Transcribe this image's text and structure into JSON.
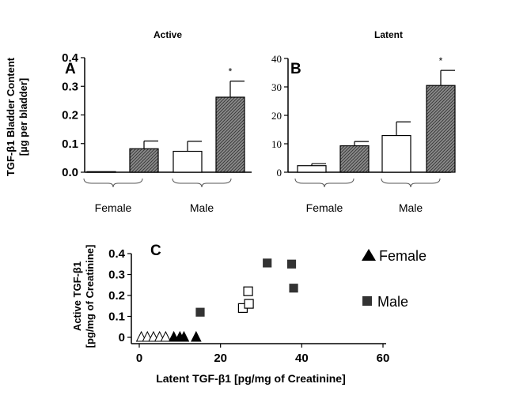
{
  "panel_A": {
    "panel_label": "A",
    "title": "Active",
    "ylabel_line1": "TGF-β1 Bladder Content",
    "ylabel_line2": "[µg per bladder]",
    "group_labels": [
      "Female",
      "Male"
    ]
  },
  "panel_B": {
    "panel_label": "B",
    "title": "Latent",
    "group_labels": [
      "Female",
      "Male"
    ]
  },
  "panel_C": {
    "panel_label": "C",
    "ylabel_line1": "Active TGF-β1",
    "ylabel_line2": "[pg/mg of Creatinine]",
    "xlabel": "Latent TGF-β1 [pg/mg of Creatinine]",
    "legend": [
      "Female",
      "Male"
    ]
  },
  "colors": {
    "hatched_bar": "#909090",
    "open_bar": "#ffffff",
    "male_marker": "#333333",
    "axis": "#000000"
  },
  "chart_data": [
    {
      "type": "bar",
      "panel": "A",
      "title": "Active",
      "ylabel": "TGF-β1 Bladder Content [µg per bladder]",
      "ylim": [
        0,
        0.4
      ],
      "yticks": [
        0.0,
        0.1,
        0.2,
        0.3,
        0.4
      ],
      "ytick_labels": [
        "0.0",
        "0.1",
        "0.2",
        "0.3",
        "0.4"
      ],
      "groups": [
        "Female",
        "Female",
        "Male",
        "Male"
      ],
      "fill": [
        "open",
        "hatched",
        "open",
        "hatched"
      ],
      "values": [
        0.002,
        0.082,
        0.073,
        0.262
      ],
      "errors": [
        0.0,
        0.027,
        0.035,
        0.056
      ],
      "significance": [
        "",
        "",
        "",
        "*"
      ]
    },
    {
      "type": "bar",
      "panel": "B",
      "title": "Latent",
      "ylim": [
        0,
        40
      ],
      "yticks": [
        0,
        10,
        20,
        30,
        40
      ],
      "ytick_labels": [
        "0",
        "10",
        "20",
        "30",
        "40"
      ],
      "groups": [
        "Female",
        "Female",
        "Male",
        "Male"
      ],
      "fill": [
        "open",
        "hatched",
        "open",
        "hatched"
      ],
      "values": [
        2.3,
        9.3,
        12.9,
        30.5
      ],
      "errors": [
        0.7,
        1.5,
        4.8,
        5.3
      ],
      "significance": [
        "",
        "",
        "",
        "*"
      ]
    },
    {
      "type": "scatter",
      "panel": "C",
      "xlabel": "Latent TGF-β1 [pg/mg of Creatinine]",
      "ylabel": "Active TGF-β1 [pg/mg of Creatinine]",
      "xlim": [
        0,
        60
      ],
      "ylim": [
        0,
        0.4
      ],
      "xticks": [
        0,
        20,
        40,
        60
      ],
      "yticks": [
        0,
        0.1,
        0.2,
        0.3,
        0.4
      ],
      "xtick_labels": [
        "0",
        "20",
        "40",
        "60"
      ],
      "ytick_labels": [
        "0",
        "0.1",
        "0.2",
        "0.3",
        "0.4"
      ],
      "series": [
        {
          "name": "Female",
          "marker": "open-triangle",
          "x": [
            0.5,
            2.0,
            3.5,
            5.0,
            6.5
          ],
          "y": [
            0,
            0,
            0,
            0,
            0
          ]
        },
        {
          "name": "Female",
          "marker": "filled-triangle",
          "x": [
            8.5,
            10.0,
            11.0,
            14.0
          ],
          "y": [
            0,
            0,
            0,
            0
          ]
        },
        {
          "name": "Male",
          "marker": "open-square",
          "x": [
            25.5,
            26.8,
            27.0
          ],
          "y": [
            0.14,
            0.22,
            0.16
          ]
        },
        {
          "name": "Male",
          "marker": "filled-square",
          "x": [
            15.0,
            31.5,
            37.5,
            38.0
          ],
          "y": [
            0.12,
            0.355,
            0.35,
            0.235
          ]
        }
      ]
    }
  ]
}
